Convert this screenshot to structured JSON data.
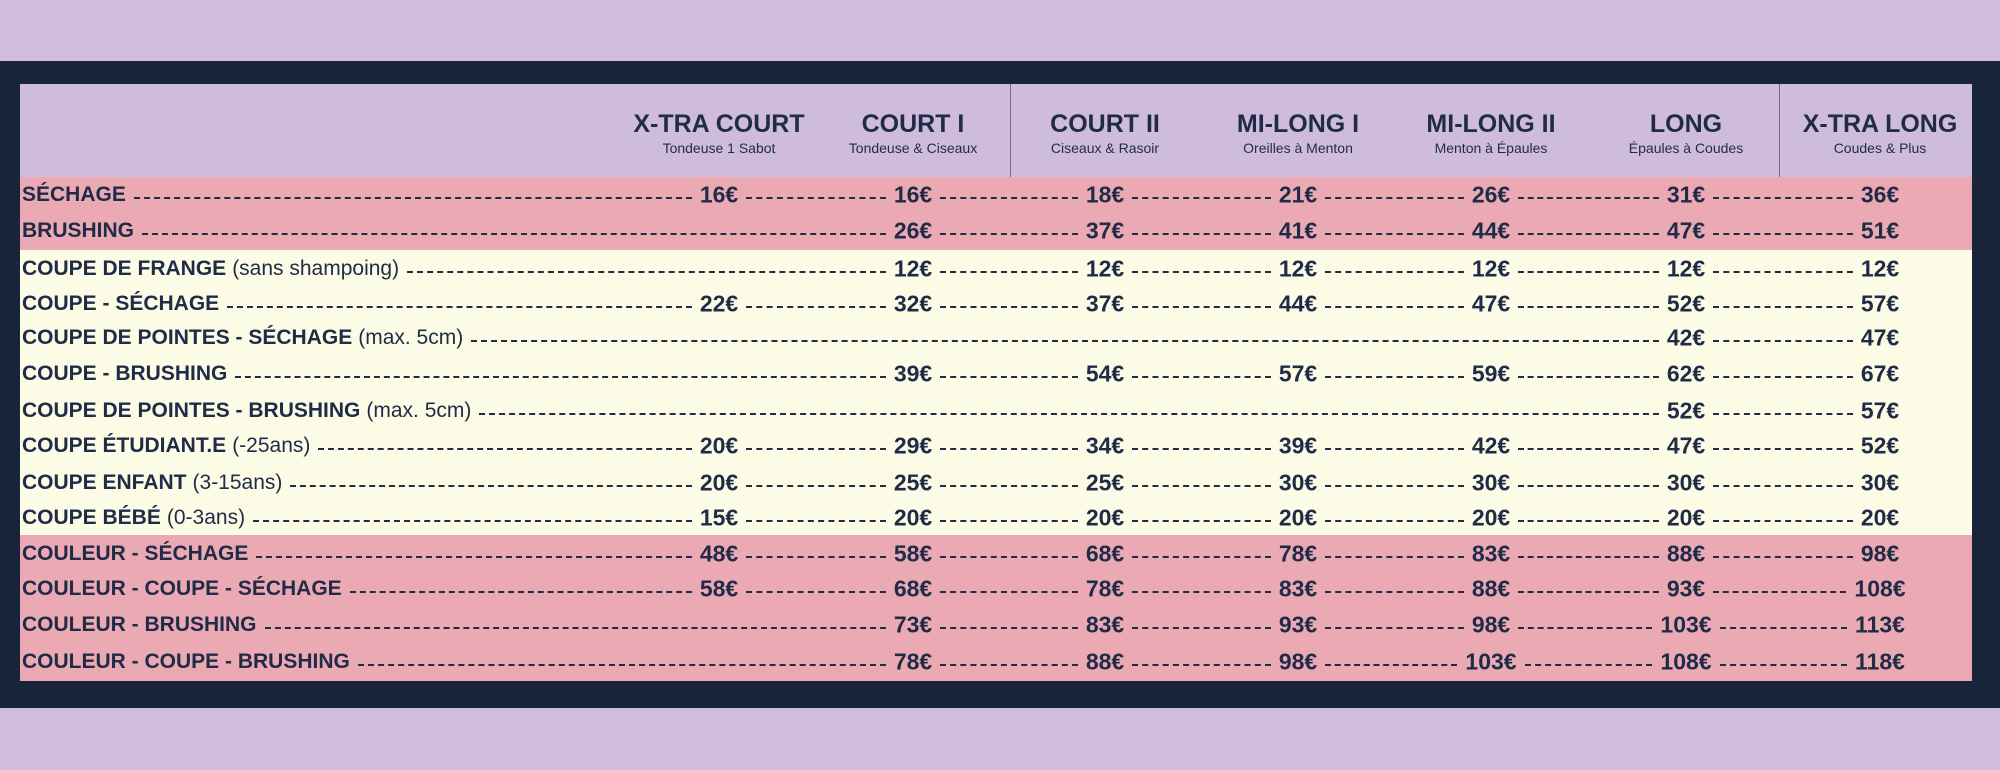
{
  "header": {
    "columns": [
      {
        "title": "X-TRA COURT",
        "subtitle": "Tondeuse  1 Sabot"
      },
      {
        "title": "COURT I",
        "subtitle": "Tondeuse & Ciseaux"
      },
      {
        "title": "COURT II",
        "subtitle": "Ciseaux & Rasoir"
      },
      {
        "title": "MI-LONG I",
        "subtitle": "Oreilles à Menton"
      },
      {
        "title": "MI-LONG II",
        "subtitle": "Menton à Épaules"
      },
      {
        "title": "LONG",
        "subtitle": "Épaules à Coudes"
      },
      {
        "title": "X-TRA LONG",
        "subtitle": "Coudes & Plus"
      }
    ]
  },
  "table": {
    "rows": [
      {
        "label": "SÉCHAGE",
        "prices": [
          "16€",
          "16€",
          "18€",
          "21€",
          "26€",
          "31€",
          "36€"
        ]
      },
      {
        "label": "BRUSHING",
        "prices": [
          null,
          "26€",
          "37€",
          "41€",
          "44€",
          "47€",
          "51€"
        ]
      },
      {
        "label": "COUPE DE FRANGE",
        "note": "(sans shampoing)",
        "prices": [
          null,
          "12€",
          "12€",
          "12€",
          "12€",
          "12€",
          "12€"
        ]
      },
      {
        "label": "COUPE - SÉCHAGE",
        "prices": [
          "22€",
          "32€",
          "37€",
          "44€",
          "47€",
          "52€",
          "57€"
        ]
      },
      {
        "label": "COUPE DE POINTES - SÉCHAGE",
        "note": "(max. 5cm)",
        "prices": [
          null,
          null,
          null,
          null,
          null,
          "42€",
          "47€"
        ]
      },
      {
        "label": "COUPE - BRUSHING",
        "prices": [
          null,
          "39€",
          "54€",
          "57€",
          "59€",
          "62€",
          "67€"
        ]
      },
      {
        "label": "COUPE DE POINTES - BRUSHING",
        "note": "(max. 5cm)",
        "prices": [
          null,
          null,
          null,
          null,
          null,
          "52€",
          "57€"
        ]
      },
      {
        "label": "COUPE ÉTUDIANT.E",
        "note": "(-25ans)",
        "prices": [
          "20€",
          "29€",
          "34€",
          "39€",
          "42€",
          "47€",
          "52€"
        ]
      },
      {
        "label": "COUPE ENFANT",
        "note": "(3-15ans)",
        "prices": [
          "20€",
          "25€",
          "25€",
          "30€",
          "30€",
          "30€",
          "30€"
        ]
      },
      {
        "label": "COUPE BÉBÉ",
        "note": "(0-3ans)",
        "prices": [
          "15€",
          "20€",
          "20€",
          "20€",
          "20€",
          "20€",
          "20€"
        ]
      },
      {
        "label": "COULEUR - SÉCHAGE",
        "prices": [
          "48€",
          "58€",
          "68€",
          "78€",
          "83€",
          "88€",
          "98€"
        ]
      },
      {
        "label": "COULEUR - COUPE - SÉCHAGE",
        "prices": [
          "58€",
          "68€",
          "78€",
          "83€",
          "88€",
          "93€",
          "108€"
        ]
      },
      {
        "label": "COULEUR - BRUSHING",
        "prices": [
          null,
          "73€",
          "83€",
          "93€",
          "98€",
          "103€",
          "113€"
        ]
      },
      {
        "label": "COULEUR - COUPE - BRUSHING",
        "prices": [
          null,
          "78€",
          "88€",
          "98€",
          "103€",
          "108€",
          "118€"
        ]
      }
    ]
  }
}
